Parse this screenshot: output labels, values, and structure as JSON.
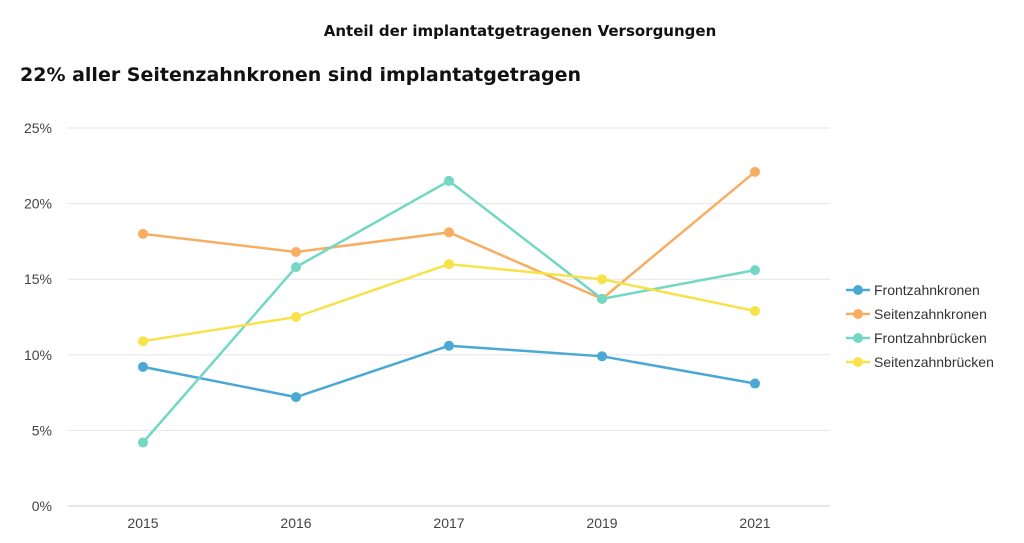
{
  "header": {
    "title": "Anteil der implantatgetragenen Versorgungen",
    "subtitle": "22% aller Seitenzahnkronen sind implantatgetragen"
  },
  "chart_data": {
    "type": "line",
    "title": "Anteil der implantatgetragenen Versorgungen",
    "subtitle": "22% aller Seitenzahnkronen sind implantatgetragen",
    "xlabel": "",
    "ylabel": "",
    "categories": [
      "2015",
      "2016",
      "2017",
      "2019",
      "2021"
    ],
    "ylim": [
      0,
      25
    ],
    "yticks": [
      "0%",
      "5%",
      "10%",
      "15%",
      "20%",
      "25%"
    ],
    "grid": true,
    "legend_position": "right",
    "series": [
      {
        "name": "Frontzahnkronen",
        "color": "#4aa9d4",
        "values": [
          9.2,
          7.2,
          10.6,
          9.9,
          8.1
        ]
      },
      {
        "name": "Seitenzahnkronen",
        "color": "#f7ae63",
        "values": [
          18.0,
          16.8,
          18.1,
          13.7,
          22.1
        ]
      },
      {
        "name": "Frontzahnbrücken",
        "color": "#72d8c4",
        "values": [
          4.2,
          15.8,
          21.5,
          13.7,
          15.6
        ]
      },
      {
        "name": "Seitenzahnbrücken",
        "color": "#f7e24a",
        "values": [
          10.9,
          12.5,
          16.0,
          15.0,
          12.9
        ]
      }
    ]
  }
}
